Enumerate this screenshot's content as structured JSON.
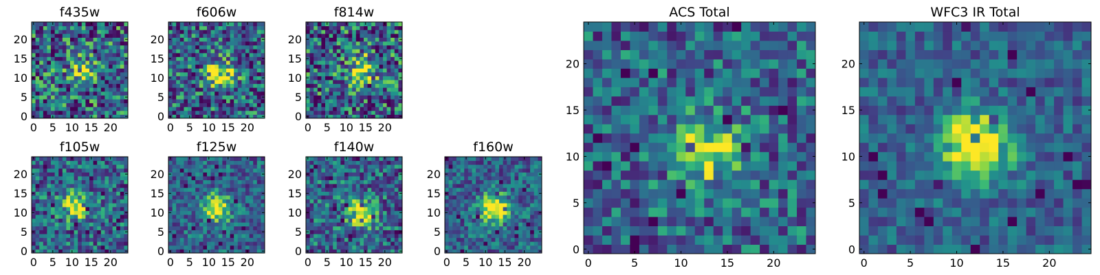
{
  "colors": {
    "colormap": "viridis",
    "background": "#ffffff",
    "axes": "#000000"
  },
  "chart_data": [
    {
      "type": "heatmap",
      "title": "f435w",
      "xticks": [
        0,
        5,
        10,
        15,
        20
      ],
      "yticks": [
        0,
        5,
        10,
        15,
        20
      ],
      "xlim": [
        -0.5,
        24.5
      ],
      "ylim": [
        -0.5,
        24.5
      ],
      "grid_size": 25,
      "source": {
        "x": 13,
        "y": 12
      },
      "signal": 0.35,
      "noise": 0.45,
      "seed": 11
    },
    {
      "type": "heatmap",
      "title": "f606w",
      "xticks": [
        0,
        5,
        10,
        15,
        20
      ],
      "yticks": [
        0,
        5,
        10,
        15,
        20
      ],
      "xlim": [
        -0.5,
        24.5
      ],
      "ylim": [
        -0.5,
        24.5
      ],
      "grid_size": 25,
      "source": {
        "x": 13,
        "y": 11
      },
      "signal": 0.6,
      "noise": 0.4,
      "seed": 22
    },
    {
      "type": "heatmap",
      "title": "f814w",
      "xticks": [
        0,
        5,
        10,
        15,
        20
      ],
      "yticks": [
        0,
        5,
        10,
        15,
        20
      ],
      "xlim": [
        -0.5,
        24.5
      ],
      "ylim": [
        -0.5,
        24.5
      ],
      "grid_size": 25,
      "source": {
        "x": 14,
        "y": 12
      },
      "signal": 0.5,
      "noise": 0.45,
      "seed": 33
    },
    {
      "type": "heatmap",
      "title": "f105w",
      "xticks": [
        0,
        5,
        10,
        15,
        20
      ],
      "yticks": [
        0,
        5,
        10,
        15,
        20
      ],
      "xlim": [
        -0.5,
        24.5
      ],
      "ylim": [
        -0.5,
        24.5
      ],
      "grid_size": 25,
      "source": {
        "x": 11,
        "y": 12
      },
      "signal": 0.55,
      "noise": 0.35,
      "seed": 44
    },
    {
      "type": "heatmap",
      "title": "f125w",
      "xticks": [
        0,
        5,
        10,
        15,
        20
      ],
      "yticks": [
        0,
        5,
        10,
        15,
        20
      ],
      "xlim": [
        -0.5,
        24.5
      ],
      "ylim": [
        -0.5,
        24.5
      ],
      "grid_size": 25,
      "source": {
        "x": 12,
        "y": 11
      },
      "signal": 0.65,
      "noise": 0.28,
      "seed": 55
    },
    {
      "type": "heatmap",
      "title": "f140w",
      "xticks": [
        0,
        5,
        10,
        15,
        20
      ],
      "yticks": [
        0,
        5,
        10,
        15,
        20
      ],
      "xlim": [
        -0.5,
        24.5
      ],
      "ylim": [
        -0.5,
        24.5
      ],
      "grid_size": 25,
      "source": {
        "x": 14,
        "y": 10
      },
      "signal": 0.55,
      "noise": 0.35,
      "seed": 66
    },
    {
      "type": "heatmap",
      "title": "f160w",
      "xticks": [
        0,
        5,
        10,
        15,
        20
      ],
      "yticks": [
        0,
        5,
        10,
        15,
        20
      ],
      "xlim": [
        -0.5,
        24.5
      ],
      "ylim": [
        -0.5,
        24.5
      ],
      "grid_size": 25,
      "source": {
        "x": 12,
        "y": 11
      },
      "signal": 0.7,
      "noise": 0.28,
      "seed": 77
    },
    {
      "type": "heatmap",
      "title": "ACS Total",
      "xticks": [
        0,
        5,
        10,
        15,
        20
      ],
      "yticks": [
        0,
        5,
        10,
        15,
        20
      ],
      "xlim": [
        -0.5,
        24.5
      ],
      "ylim": [
        -0.5,
        24.5
      ],
      "grid_size": 25,
      "source": {
        "x": 13,
        "y": 11
      },
      "signal": 0.55,
      "noise": 0.32,
      "seed": 88
    },
    {
      "type": "heatmap",
      "title": "WFC3 IR Total",
      "xticks": [
        0,
        5,
        10,
        15,
        20
      ],
      "yticks": [
        0,
        5,
        10,
        15,
        20
      ],
      "xlim": [
        -0.5,
        24.5
      ],
      "ylim": [
        -0.5,
        24.5
      ],
      "grid_size": 25,
      "source": {
        "x": 12,
        "y": 11
      },
      "signal": 0.75,
      "noise": 0.22,
      "seed": 99
    }
  ]
}
